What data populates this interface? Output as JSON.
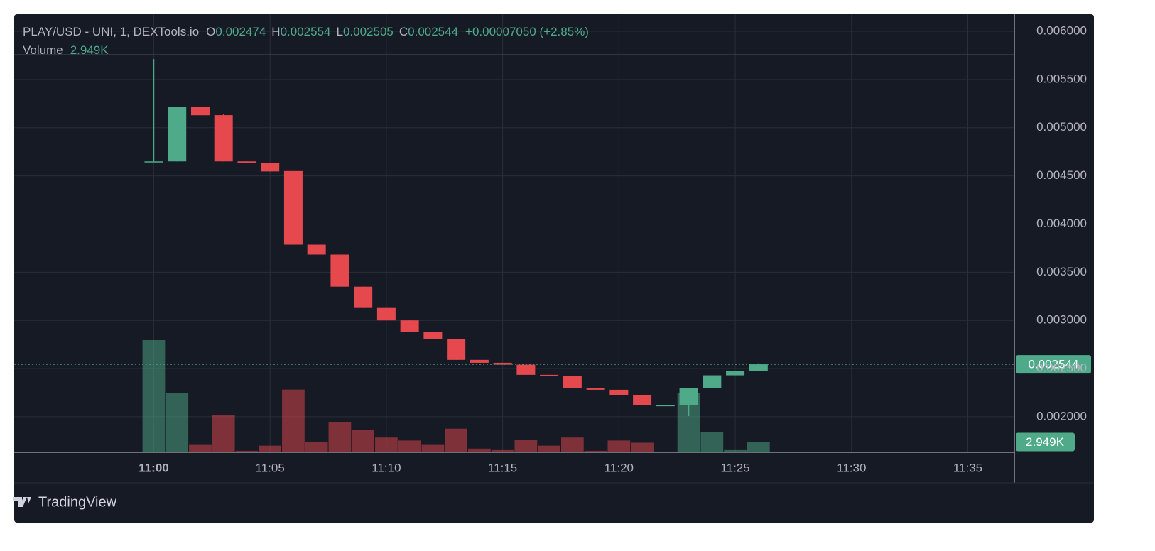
{
  "chart_data": {
    "type": "candlestick",
    "symbol_title": "PLAY/USD - UNI, 1, DEXTools.io",
    "ohlc_labels": [
      "O",
      "H",
      "L",
      "C"
    ],
    "change": "+0.00007050 (+2.85%)",
    "brand": "TradingView",
    "up_color": "#4faa8a",
    "down_color": "#e5484d",
    "grid": true,
    "x": [
      "11:00",
      "11:01",
      "11:02",
      "11:03",
      "11:04",
      "11:05",
      "11:06",
      "11:07",
      "11:08",
      "11:09",
      "11:10",
      "11:11",
      "11:12",
      "11:13",
      "11:14",
      "11:15",
      "11:16",
      "11:17",
      "11:18",
      "11:19",
      "11:20",
      "11:21",
      "11:22",
      "11:23",
      "11:24",
      "11:25",
      "11:26"
    ],
    "open": [
      0.00465,
      0.00465,
      0.005218,
      0.00513,
      0.00465,
      0.00463,
      0.00455,
      0.003786,
      0.003683,
      0.00335,
      0.003129,
      0.003,
      0.002878,
      0.002804,
      0.00259,
      0.00256,
      0.00254,
      0.002435,
      0.00242,
      0.002295,
      0.00228,
      0.002221,
      0.00212,
      0.00212,
      0.002295,
      0.00243,
      0.002474
    ],
    "high": [
      0.005712,
      0.005218,
      0.005218,
      0.00514,
      0.00465,
      0.00463,
      0.00455,
      0.003786,
      0.003683,
      0.00335,
      0.003129,
      0.003,
      0.002878,
      0.002804,
      0.00259,
      0.00256,
      0.00254,
      0.002435,
      0.00242,
      0.002295,
      0.00228,
      0.002221,
      0.00212,
      0.002295,
      0.00243,
      0.002474,
      0.002554
    ],
    "low": [
      0.00465,
      0.00465,
      0.005129,
      0.00465,
      0.00463,
      0.004546,
      0.003786,
      0.003683,
      0.00335,
      0.003129,
      0.003,
      0.002878,
      0.002804,
      0.00259,
      0.00256,
      0.00254,
      0.002435,
      0.00242,
      0.002295,
      0.00228,
      0.002221,
      0.002118,
      0.00212,
      0.002007,
      0.002295,
      0.00243,
      0.002505
    ],
    "close": [
      0.00465,
      0.005218,
      0.005129,
      0.00465,
      0.00463,
      0.004546,
      0.003786,
      0.003683,
      0.00335,
      0.003129,
      0.003,
      0.002878,
      0.002804,
      0.00259,
      0.00256,
      0.00254,
      0.002435,
      0.00242,
      0.002295,
      0.00228,
      0.002221,
      0.002118,
      0.00212,
      0.002295,
      0.00243,
      0.002474,
      0.002544
    ],
    "volume": {
      "name": "Volume",
      "values": [
        32010,
        16850,
        2106,
        10740,
        421,
        1895,
        17900,
        2949,
        8635,
        6318,
        4212,
        3370,
        2106,
        6739,
        1053,
        632,
        3580,
        1895,
        4212,
        421,
        3370,
        2738,
        211,
        16850,
        5686,
        632,
        2949
      ],
      "last_label": "2.949K",
      "ylim": [
        0,
        125000
      ]
    },
    "ylim": [
      0.001631,
      0.006177
    ],
    "yticks": [
      {
        "value": 0.002,
        "label": "0.002000"
      },
      {
        "value": 0.0025,
        "label": "0.002500"
      },
      {
        "value": 0.003,
        "label": "0.003000"
      },
      {
        "value": 0.0035,
        "label": "0.003500"
      },
      {
        "value": 0.004,
        "label": "0.004000"
      },
      {
        "value": 0.0045,
        "label": "0.004500"
      },
      {
        "value": 0.005,
        "label": "0.005000"
      },
      {
        "value": 0.0055,
        "label": "0.005500"
      },
      {
        "value": 0.006,
        "label": "0.006000"
      }
    ],
    "xlim": [
      "10:54",
      "11:37"
    ],
    "xticks": [
      "11:00",
      "11:05",
      "11:10",
      "11:15",
      "11:20",
      "11:25",
      "11:30",
      "11:35"
    ]
  }
}
